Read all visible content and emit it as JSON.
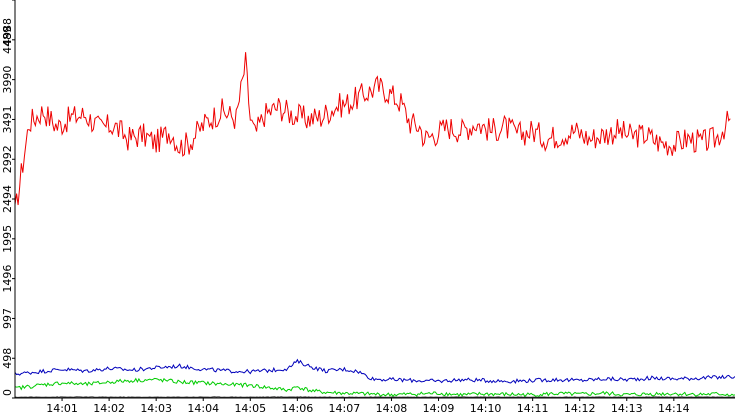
{
  "chart_data": {
    "type": "line",
    "title": "",
    "xlabel": "",
    "ylabel": "",
    "ylim": [
      0,
      4988
    ],
    "xlim": [
      0,
      15.3
    ],
    "grid": false,
    "legend": "none",
    "y_ticks": [
      {
        "value": 0,
        "label": "0"
      },
      {
        "value": 498,
        "label": "498"
      },
      {
        "value": 997,
        "label": "997"
      },
      {
        "value": 1496,
        "label": "1496"
      },
      {
        "value": 1995,
        "label": "1995"
      },
      {
        "value": 2494,
        "label": "2494"
      },
      {
        "value": 2992,
        "label": "2992"
      },
      {
        "value": 3491,
        "label": "3491"
      },
      {
        "value": 3990,
        "label": "3990"
      },
      {
        "value": 4489,
        "label": "4489"
      },
      {
        "value": 4988,
        "label": "4988"
      }
    ],
    "x_ticks": [
      {
        "value": 1,
        "label": "14:01"
      },
      {
        "value": 2,
        "label": "14:02"
      },
      {
        "value": 3,
        "label": "14:03"
      },
      {
        "value": 4,
        "label": "14:04"
      },
      {
        "value": 5,
        "label": "14:05"
      },
      {
        "value": 6,
        "label": "14:06"
      },
      {
        "value": 7,
        "label": "14:07"
      },
      {
        "value": 8,
        "label": "14:08"
      },
      {
        "value": 9,
        "label": "14:09"
      },
      {
        "value": 10,
        "label": "14:10"
      },
      {
        "value": 11,
        "label": "14:11"
      },
      {
        "value": 12,
        "label": "14:12"
      },
      {
        "value": 13,
        "label": "14:13"
      },
      {
        "value": 14,
        "label": "14:14"
      }
    ],
    "series": [
      {
        "color": "#ee0000",
        "x": [
          0.0,
          0.3,
          0.6,
          0.9,
          1.2,
          1.5,
          1.8,
          2.1,
          2.4,
          2.7,
          3.0,
          3.3,
          3.5,
          3.7,
          3.9,
          4.1,
          4.4,
          4.7,
          4.9,
          5.0,
          5.1,
          5.3,
          5.6,
          5.9,
          6.2,
          6.5,
          6.8,
          7.1,
          7.4,
          7.7,
          7.9,
          8.2,
          8.4,
          8.6,
          8.7,
          8.9,
          9.2,
          9.5,
          9.8,
          10.1,
          10.4,
          10.7,
          11.0,
          11.3,
          11.6,
          11.9,
          12.2,
          12.5,
          12.8,
          13.1,
          13.4,
          13.7,
          14.0,
          14.3,
          14.6,
          14.9,
          15.2
        ],
        "y": [
          2300,
          3450,
          3600,
          3400,
          3520,
          3550,
          3380,
          3420,
          3250,
          3300,
          3200,
          3350,
          3150,
          3200,
          3350,
          3480,
          3600,
          3500,
          4200,
          3500,
          3300,
          3550,
          3650,
          3550,
          3500,
          3520,
          3650,
          3700,
          3800,
          3900,
          3850,
          3700,
          3450,
          3400,
          3250,
          3300,
          3400,
          3350,
          3450,
          3350,
          3400,
          3300,
          3350,
          3250,
          3300,
          3350,
          3250,
          3300,
          3350,
          3280,
          3300,
          3200,
          3180,
          3250,
          3200,
          3250,
          3500
        ]
      },
      {
        "color": "#0000bb",
        "x": [
          0.0,
          0.5,
          1.0,
          1.5,
          2.0,
          2.5,
          3.0,
          3.5,
          4.0,
          4.5,
          5.0,
          5.5,
          5.8,
          6.0,
          6.3,
          6.6,
          7.0,
          7.3,
          7.6,
          8.0,
          8.5,
          9.0,
          9.5,
          10.0,
          10.5,
          11.0,
          11.5,
          12.0,
          12.5,
          13.0,
          13.5,
          14.0,
          14.5,
          15.0,
          15.3
        ],
        "y": [
          300,
          330,
          360,
          340,
          370,
          350,
          380,
          400,
          360,
          340,
          330,
          350,
          370,
          460,
          390,
          340,
          360,
          330,
          240,
          230,
          220,
          210,
          230,
          220,
          210,
          220,
          230,
          220,
          240,
          230,
          250,
          240,
          250,
          260,
          270
        ]
      },
      {
        "color": "#00cc00",
        "x": [
          0.0,
          0.5,
          1.0,
          1.5,
          2.0,
          2.5,
          3.0,
          3.5,
          4.0,
          4.5,
          5.0,
          5.5,
          5.8,
          6.0,
          6.3,
          6.6,
          7.0,
          7.5,
          8.0,
          8.5,
          9.0,
          9.5,
          10.0,
          10.5,
          11.0,
          11.5,
          12.0,
          12.5,
          13.0,
          13.5,
          14.0,
          14.5,
          15.0,
          15.3
        ],
        "y": [
          120,
          160,
          190,
          170,
          200,
          220,
          230,
          200,
          190,
          170,
          160,
          120,
          100,
          140,
          90,
          70,
          60,
          50,
          40,
          50,
          60,
          40,
          50,
          45,
          40,
          55,
          45,
          60,
          40,
          50,
          55,
          45,
          50,
          40
        ]
      },
      {
        "color": "#333333",
        "x": [
          0.0,
          1.0,
          2.0,
          3.0,
          4.0,
          5.0,
          6.0,
          7.0,
          8.0,
          9.0,
          10.0,
          11.0,
          12.0,
          13.0,
          14.0,
          15.3
        ],
        "y": [
          10,
          12,
          11,
          10,
          12,
          11,
          13,
          10,
          11,
          10,
          12,
          10,
          11,
          10,
          12,
          11
        ]
      }
    ]
  }
}
